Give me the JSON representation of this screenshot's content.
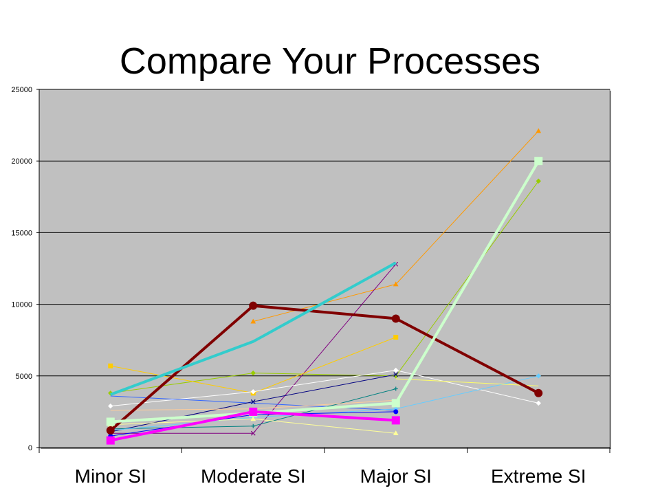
{
  "title": "Compare Your Processes",
  "chart_data": {
    "type": "line",
    "categories": [
      "Minor SI",
      "Moderate SI",
      "Major SI",
      "Extreme SI"
    ],
    "ylim": [
      0,
      25000
    ],
    "yticks": [
      "0",
      "5000",
      "10000",
      "15000",
      "20000",
      "25000"
    ],
    "grid": "horizontal major gridlines",
    "legend": "none",
    "plot_background": "#c0c0c0",
    "series": [
      {
        "color": "#800000",
        "marker": "circle",
        "emphasis": true,
        "values": [
          1200,
          9900,
          9000,
          3800
        ]
      },
      {
        "color": "#33cccc",
        "marker": "none",
        "emphasis": true,
        "values": [
          3700,
          7400,
          12900,
          null
        ]
      },
      {
        "color": "#ccffcc",
        "marker": "square",
        "emphasis": true,
        "values": [
          1800,
          2400,
          3100,
          20000
        ]
      },
      {
        "color": "#ff00ff",
        "marker": "square",
        "emphasis": true,
        "values": [
          500,
          2500,
          1900,
          null
        ]
      },
      {
        "color": "#ff9900",
        "marker": "triangle",
        "values": [
          null,
          8800,
          11400,
          22100
        ]
      },
      {
        "color": "#99cc00",
        "marker": "diamond",
        "values": [
          3800,
          5200,
          5000,
          18600
        ]
      },
      {
        "color": "#800080",
        "marker": "x",
        "values": [
          1000,
          1000,
          12800,
          null
        ]
      },
      {
        "color": "#ffcc00",
        "marker": "square",
        "values": [
          5700,
          3800,
          7700,
          null
        ]
      },
      {
        "color": "#ffffff",
        "marker": "diamond",
        "values": [
          2900,
          3900,
          5400,
          3100
        ]
      },
      {
        "color": "#3366ff",
        "marker": "none",
        "values": [
          3600,
          3100,
          2600,
          null
        ]
      },
      {
        "color": "#000080",
        "marker": "x",
        "values": [
          1100,
          3200,
          5100,
          null
        ]
      },
      {
        "color": "#008080",
        "marker": "plus",
        "values": [
          1300,
          1500,
          4100,
          null
        ]
      },
      {
        "color": "#66ccff",
        "marker": "diamond",
        "values": [
          1200,
          2100,
          2700,
          5000
        ]
      },
      {
        "color": "#ffff99",
        "marker": "triangle",
        "values": [
          1600,
          2000,
          1000,
          null
        ]
      },
      {
        "color": "#ffff66",
        "marker": "none",
        "values": [
          null,
          null,
          4800,
          4300
        ]
      },
      {
        "color": "#0000ff",
        "marker": "circle",
        "values": [
          800,
          2300,
          2500,
          null
        ]
      },
      {
        "color": "#ffcc99",
        "marker": "none",
        "values": [
          2600,
          2700,
          3300,
          null
        ]
      }
    ]
  }
}
